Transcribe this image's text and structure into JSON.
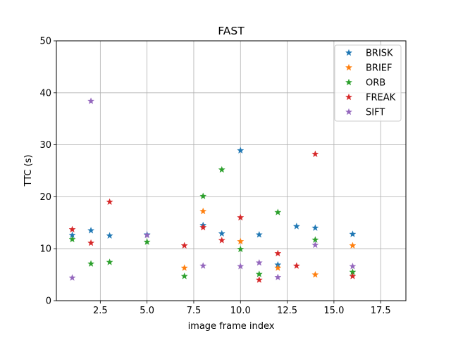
{
  "chart_data": {
    "type": "scatter",
    "title": "FAST",
    "xlabel": "image frame index",
    "ylabel": "TTC (s)",
    "xlim": [
      0.15,
      18.85
    ],
    "ylim": [
      0,
      50
    ],
    "xticks": [
      2.5,
      5.0,
      7.5,
      10.0,
      12.5,
      15.0,
      17.5
    ],
    "xtick_labels": [
      "2.5",
      "5.0",
      "7.5",
      "10.0",
      "12.5",
      "15.0",
      "17.5"
    ],
    "yticks": [
      0,
      10,
      20,
      30,
      40,
      50
    ],
    "ytick_labels": [
      "0",
      "10",
      "20",
      "30",
      "40",
      "50"
    ],
    "grid": true,
    "marker": "star",
    "legend_position": "top-right",
    "series": [
      {
        "name": "BRISK",
        "color": "#1f77b4",
        "points": [
          [
            1,
            12.6
          ],
          [
            2,
            13.5
          ],
          [
            3,
            12.5
          ],
          [
            5,
            12.7
          ],
          [
            8,
            14.5
          ],
          [
            9,
            12.9
          ],
          [
            10,
            28.9
          ],
          [
            11,
            12.7
          ],
          [
            12,
            6.9
          ],
          [
            13,
            14.3
          ],
          [
            14,
            14.0
          ],
          [
            16,
            12.8
          ]
        ]
      },
      {
        "name": "BRIEF",
        "color": "#ff7f0e",
        "points": [
          [
            7,
            6.3
          ],
          [
            8,
            17.2
          ],
          [
            10,
            11.4
          ],
          [
            12,
            6.3
          ],
          [
            14,
            5.0
          ],
          [
            16,
            10.6
          ]
        ]
      },
      {
        "name": "ORB",
        "color": "#2ca02c",
        "points": [
          [
            1,
            11.8
          ],
          [
            2,
            7.1
          ],
          [
            3,
            7.4
          ],
          [
            5,
            11.3
          ],
          [
            7,
            4.7
          ],
          [
            8,
            20.1
          ],
          [
            9,
            25.2
          ],
          [
            10,
            9.9
          ],
          [
            11,
            5.1
          ],
          [
            12,
            17.0
          ],
          [
            14,
            11.7
          ],
          [
            16,
            5.5
          ]
        ]
      },
      {
        "name": "FREAK",
        "color": "#d62728",
        "points": [
          [
            1,
            13.7
          ],
          [
            2,
            11.1
          ],
          [
            3,
            19.0
          ],
          [
            7,
            10.6
          ],
          [
            8,
            14.1
          ],
          [
            9,
            11.6
          ],
          [
            10,
            16.0
          ],
          [
            11,
            4.0
          ],
          [
            12,
            9.1
          ],
          [
            13,
            6.7
          ],
          [
            14,
            28.2
          ],
          [
            16,
            4.7
          ]
        ]
      },
      {
        "name": "SIFT",
        "color": "#9467bd",
        "points": [
          [
            1,
            4.4
          ],
          [
            2,
            38.4
          ],
          [
            5,
            12.6
          ],
          [
            8,
            6.7
          ],
          [
            10,
            6.6
          ],
          [
            11,
            7.3
          ],
          [
            12,
            4.5
          ],
          [
            14,
            10.7
          ],
          [
            16,
            6.6
          ]
        ]
      }
    ]
  }
}
